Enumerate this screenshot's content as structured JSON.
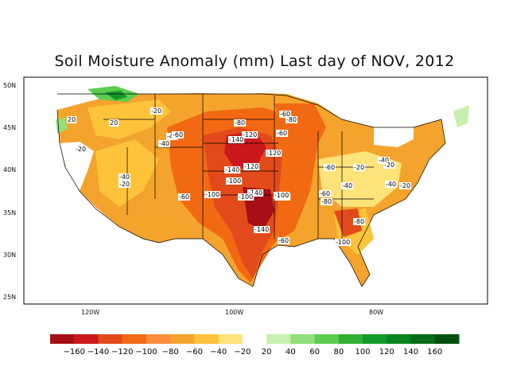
{
  "title": "Soil Moisture Anomaly (mm) Last day of NOV, 2012",
  "axes": {
    "lat_ticks": [
      "50N",
      "45N",
      "40N",
      "35N",
      "30N",
      "25N"
    ],
    "lon_ticks": [
      "120W",
      "100W",
      "80W"
    ]
  },
  "colorbar": {
    "colors": [
      "#a50f15",
      "#cb181d",
      "#e34a1b",
      "#f16913",
      "#fd8d3c",
      "#f4a32c",
      "#fdc33b",
      "#fde37a",
      "#ffffff",
      "#c7f0b0",
      "#93e07a",
      "#5ccc4f",
      "#31b034",
      "#139a2a",
      "#0a8420",
      "#066b17",
      "#034f10"
    ],
    "labels": [
      "−160",
      "−140",
      "−120",
      "−100",
      "−80",
      "−60",
      "−40",
      "−20",
      "20",
      "40",
      "60",
      "80",
      "100",
      "120",
      "140",
      "160"
    ]
  },
  "contour_labels": [
    "20",
    "20",
    "-20",
    "-20",
    "-40",
    "-40",
    "-20",
    "-40",
    "-60",
    "-60",
    "-60",
    "-80",
    "-120",
    "-140",
    "-120",
    "-140",
    "-120",
    "-100",
    "-140",
    "-100",
    "-60",
    "-100",
    "-100",
    "-100",
    "-140",
    "-60",
    "-80",
    "-60",
    "-80",
    "-60",
    "-20",
    "-40",
    "-80",
    "-100",
    "-40",
    "-20",
    "-40",
    "-20"
  ]
}
